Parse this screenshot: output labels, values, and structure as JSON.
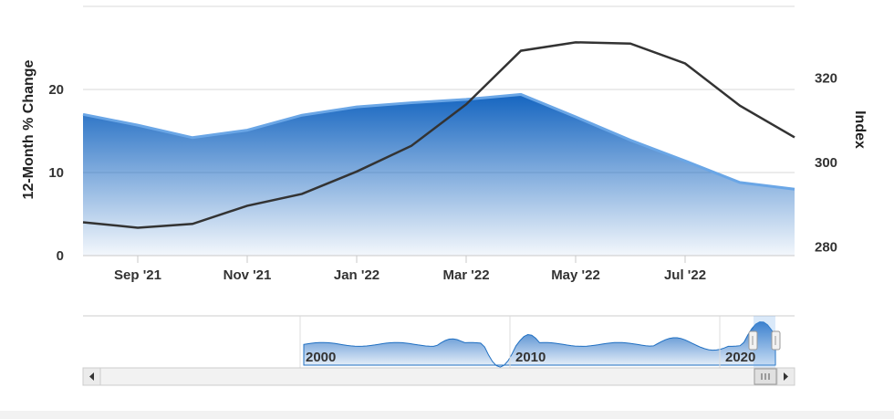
{
  "chart_data": {
    "type": "area+line",
    "x_labels": [
      "Sep '21",
      "Nov '21",
      "Jan '22",
      "Mar '22",
      "May '22",
      "Jul '22"
    ],
    "left_axis": {
      "title": "12-Month % Change",
      "ticks": [
        0,
        10,
        20
      ],
      "range": [
        0,
        30
      ]
    },
    "right_axis": {
      "title": "Index",
      "ticks": [
        280,
        300,
        320
      ],
      "range": [
        278,
        337
      ]
    },
    "series": [
      {
        "type": "area",
        "axis": "left",
        "color": "#1f6fc2",
        "x": [
          "2021-07",
          "2021-08",
          "2021-09",
          "2021-10",
          "2021-11",
          "2021-12",
          "2022-01",
          "2022-02",
          "2022-03",
          "2022-04",
          "2022-05",
          "2022-06",
          "2022-07",
          "2022-08"
        ],
        "values": [
          17.0,
          15.7,
          14.2,
          15.1,
          16.9,
          17.9,
          18.4,
          18.8,
          19.4,
          16.7,
          13.9,
          11.4,
          8.8,
          8.0
        ]
      },
      {
        "type": "line",
        "axis": "right",
        "color": "#333333",
        "x": [
          "2021-07",
          "2021-08",
          "2021-09",
          "2021-10",
          "2021-11",
          "2021-12",
          "2022-01",
          "2022-02",
          "2022-03",
          "2022-04",
          "2022-05",
          "2022-06",
          "2022-07",
          "2022-08"
        ],
        "values": [
          285.9,
          284.6,
          285.5,
          289.8,
          292.6,
          297.9,
          304.0,
          313.8,
          326.5,
          328.5,
          328.2,
          323.5,
          313.5,
          306.0
        ]
      }
    ],
    "navigator": {
      "labels": [
        "2000",
        "2010",
        "2020"
      ]
    },
    "grid": true,
    "legend": "none"
  }
}
